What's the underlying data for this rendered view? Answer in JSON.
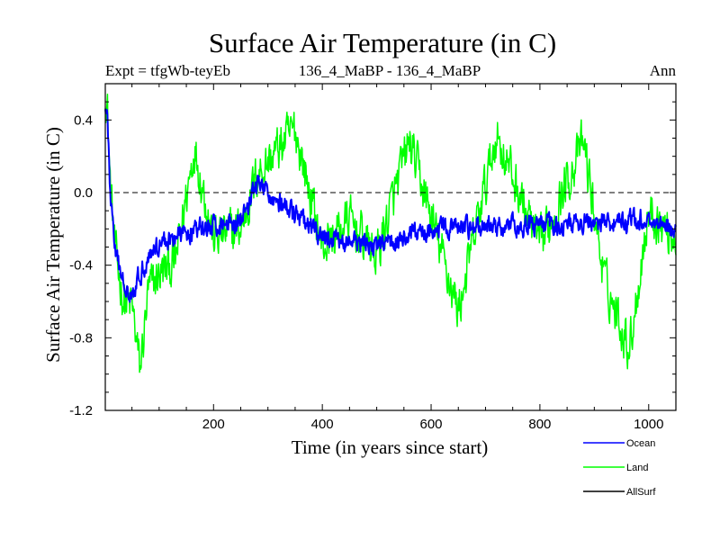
{
  "chart_data": {
    "type": "line",
    "title": "Surface Air Temperature (in C)",
    "subtitle_left": "Expt = tfgWb-teyEb",
    "subtitle_center": "136_4_MaBP - 136_4_MaBP",
    "subtitle_right": "Ann",
    "xlabel": "Time (in years since start)",
    "ylabel": "Surface Air Temperature (in C)",
    "xlim": [
      1,
      1050
    ],
    "ylim": [
      -1.2,
      0.6
    ],
    "xticks": [
      200,
      400,
      600,
      800,
      1000
    ],
    "yticks": [
      -1.2,
      -0.8,
      -0.4,
      0.0,
      0.4
    ],
    "ytick_labels": [
      "-1.2",
      "-0.8",
      "-0.4",
      "0.0",
      "0.4"
    ],
    "reference_line": 0.0,
    "series": [
      {
        "name": "Land",
        "color": "#00ff00",
        "key_points": [
          [
            1,
            0.57
          ],
          [
            5,
            0.45
          ],
          [
            10,
            0.05
          ],
          [
            20,
            -0.35
          ],
          [
            35,
            -0.6
          ],
          [
            50,
            -0.62
          ],
          [
            65,
            -0.98
          ],
          [
            80,
            -0.55
          ],
          [
            100,
            -0.45
          ],
          [
            130,
            -0.38
          ],
          [
            165,
            0.25
          ],
          [
            200,
            -0.25
          ],
          [
            250,
            -0.2
          ],
          [
            280,
            0.1
          ],
          [
            350,
            0.35
          ],
          [
            400,
            -0.3
          ],
          [
            450,
            -0.15
          ],
          [
            500,
            -0.35
          ],
          [
            560,
            0.28
          ],
          [
            650,
            -0.65
          ],
          [
            720,
            0.32
          ],
          [
            800,
            -0.3
          ],
          [
            880,
            0.28
          ],
          [
            920,
            -0.5
          ],
          [
            965,
            -0.85
          ],
          [
            1000,
            -0.1
          ],
          [
            1050,
            -0.25
          ]
        ],
        "mean": -0.28,
        "noise_amplitude": 0.2
      },
      {
        "name": "Ocean",
        "color": "#0000ff",
        "key_points": [
          [
            1,
            0.5
          ],
          [
            5,
            0.4
          ],
          [
            10,
            0.0
          ],
          [
            20,
            -0.35
          ],
          [
            35,
            -0.5
          ],
          [
            50,
            -0.55
          ],
          [
            65,
            -0.45
          ],
          [
            80,
            -0.35
          ],
          [
            100,
            -0.28
          ],
          [
            150,
            -0.22
          ],
          [
            250,
            -0.15
          ],
          [
            280,
            0.05
          ],
          [
            400,
            -0.25
          ],
          [
            500,
            -0.3
          ],
          [
            600,
            -0.2
          ],
          [
            800,
            -0.18
          ],
          [
            1000,
            -0.15
          ],
          [
            1050,
            -0.2
          ]
        ],
        "mean": -0.22,
        "noise_amplitude": 0.09
      },
      {
        "name": "AllSurf",
        "color": "#000000",
        "key_points": [],
        "mean": null,
        "noise_amplitude": 0
      }
    ],
    "legend": [
      "Ocean",
      "Land",
      "AllSurf"
    ],
    "legend_position": "bottom-right"
  }
}
